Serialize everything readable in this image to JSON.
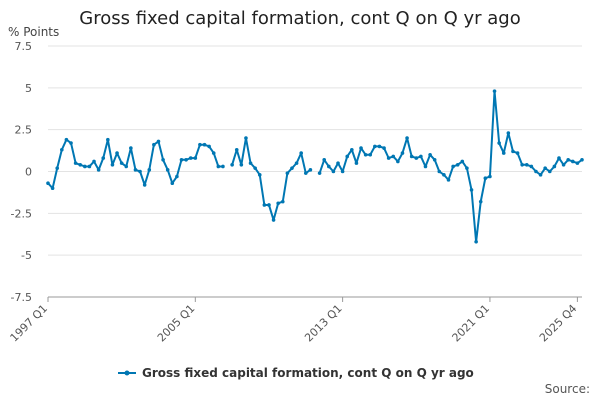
{
  "chart_data": {
    "type": "line",
    "title": "Gross fixed capital formation, cont Q on Q yr ago",
    "ylabel": "% Points",
    "xlabel": "",
    "ylim": [
      -7.5,
      7.5
    ],
    "yticks": [
      "7.5",
      "5",
      "2.5",
      "0",
      "-2.5",
      "-5",
      "-7.5"
    ],
    "ytick_values": [
      7.5,
      5,
      2.5,
      0,
      -2.5,
      -5,
      -7.5
    ],
    "xtick_labels": [
      "1997 Q1",
      "2005 Q1",
      "2013 Q1",
      "2021 Q1",
      "2025 Q4"
    ],
    "xtick_index": [
      0,
      32,
      64,
      96,
      115
    ],
    "grid": true,
    "legend_position": "bottom",
    "source_label": "Source:",
    "color": "#0077b3",
    "series": [
      {
        "name": "Gross fixed capital formation, cont Q on Q yr ago",
        "values": [
          -0.7,
          -1.0,
          0.2,
          1.3,
          1.9,
          1.7,
          0.5,
          0.4,
          0.3,
          0.3,
          0.6,
          0.1,
          0.8,
          1.9,
          0.4,
          1.1,
          0.5,
          0.3,
          1.4,
          0.1,
          0.0,
          -0.8,
          0.1,
          1.6,
          1.8,
          0.7,
          0.1,
          -0.7,
          -0.3,
          0.7,
          0.7,
          0.8,
          0.8,
          1.6,
          1.6,
          1.5,
          1.1,
          0.3,
          0.3,
          null,
          0.4,
          1.3,
          0.4,
          2.0,
          0.5,
          0.2,
          -0.2,
          -2.0,
          -2.0,
          -2.9,
          -1.9,
          -1.8,
          -0.1,
          0.2,
          0.5,
          1.1,
          -0.1,
          0.1,
          null,
          -0.1,
          0.7,
          0.3,
          0.0,
          0.5,
          0.0,
          0.9,
          1.3,
          0.5,
          1.4,
          1.0,
          1.0,
          1.5,
          1.5,
          1.4,
          0.8,
          0.9,
          0.6,
          1.1,
          2.0,
          0.9,
          0.8,
          0.9,
          0.3,
          1.0,
          0.7,
          0.0,
          -0.2,
          -0.5,
          0.3,
          0.4,
          0.6,
          0.2,
          -1.1,
          -4.2,
          -1.8,
          -0.4,
          -0.3,
          4.8,
          1.7,
          1.1,
          2.3,
          1.2,
          1.1,
          0.4,
          0.4,
          0.3,
          0.0,
          -0.2,
          0.2,
          0.0,
          0.3,
          0.8,
          0.4,
          0.7,
          0.6,
          0.5,
          0.7
        ]
      }
    ]
  }
}
